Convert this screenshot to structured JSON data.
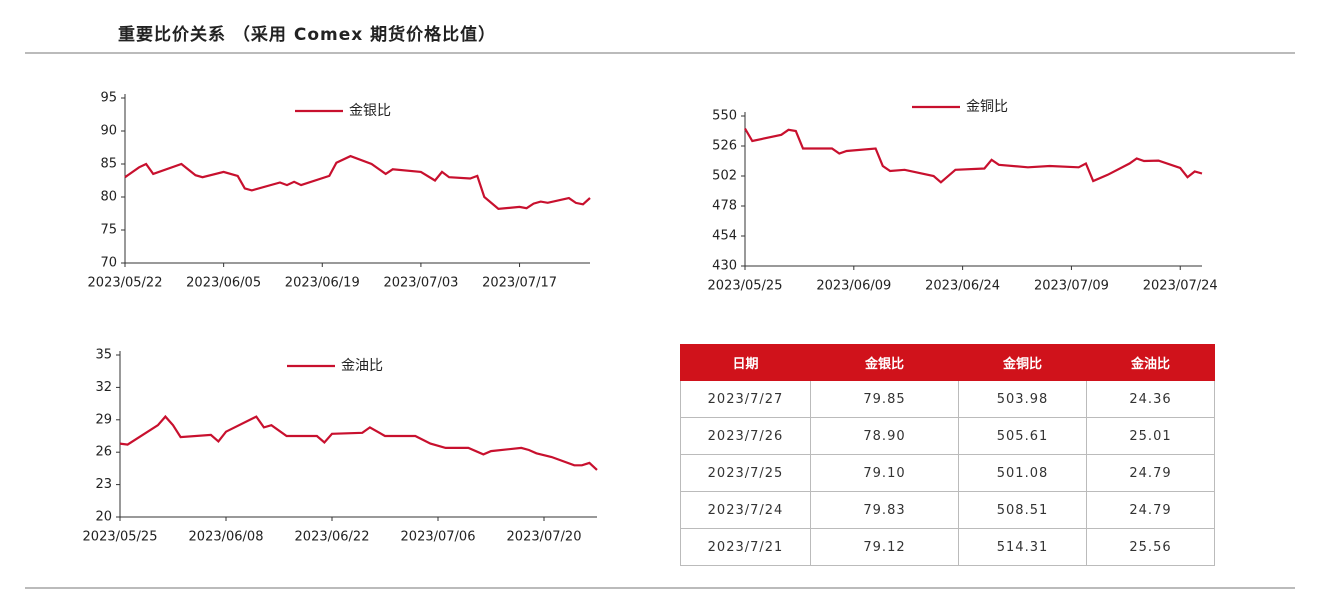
{
  "header": {
    "title": "重要比价关系 （采用 Comex 期货价格比值）"
  },
  "chart_data": [
    {
      "type": "line",
      "legend": "top",
      "xlim": [
        "2023/05/22",
        "2023/07/27"
      ],
      "xticks": [
        "2023/05/22",
        "2023/06/05",
        "2023/06/19",
        "2023/07/03",
        "2023/07/17"
      ],
      "ylim": [
        70,
        95
      ],
      "yticks": [
        70,
        75,
        80,
        85,
        90,
        95
      ],
      "x": [
        "2023/05/22",
        "2023/05/24",
        "2023/05/25",
        "2023/05/26",
        "2023/05/30",
        "2023/06/01",
        "2023/06/02",
        "2023/06/05",
        "2023/06/07",
        "2023/06/08",
        "2023/06/09",
        "2023/06/13",
        "2023/06/14",
        "2023/06/15",
        "2023/06/16",
        "2023/06/20",
        "2023/06/21",
        "2023/06/23",
        "2023/06/26",
        "2023/06/28",
        "2023/06/29",
        "2023/07/03",
        "2023/07/05",
        "2023/07/06",
        "2023/07/07",
        "2023/07/10",
        "2023/07/11",
        "2023/07/12",
        "2023/07/14",
        "2023/07/17",
        "2023/07/18",
        "2023/07/19",
        "2023/07/20",
        "2023/07/21",
        "2023/07/24",
        "2023/07/25",
        "2023/07/26",
        "2023/07/27"
      ],
      "series": [
        {
          "name": "金银比",
          "color": "#c8102e",
          "values": [
            83,
            84.5,
            85,
            83.5,
            85,
            83.3,
            83,
            83.8,
            83.2,
            81.3,
            81,
            82.2,
            81.8,
            82.3,
            81.8,
            83.2,
            85.2,
            86.2,
            85,
            83.5,
            84.2,
            83.8,
            82.5,
            83.8,
            83,
            82.8,
            83.2,
            80,
            78.2,
            78.5,
            78.3,
            79,
            79.3,
            79.12,
            79.83,
            79.1,
            78.9,
            79.85
          ]
        }
      ]
    },
    {
      "type": "line",
      "legend": "top",
      "xlim": [
        "2023/05/25",
        "2023/07/27"
      ],
      "xticks": [
        "2023/05/25",
        "2023/06/09",
        "2023/06/24",
        "2023/07/09",
        "2023/07/24"
      ],
      "ylim": [
        430,
        550
      ],
      "yticks": [
        430,
        454,
        478,
        502,
        526,
        550
      ],
      "x": [
        "2023/05/25",
        "2023/05/26",
        "2023/05/30",
        "2023/05/31",
        "2023/06/01",
        "2023/06/02",
        "2023/06/06",
        "2023/06/07",
        "2023/06/08",
        "2023/06/12",
        "2023/06/13",
        "2023/06/14",
        "2023/06/16",
        "2023/06/20",
        "2023/06/21",
        "2023/06/23",
        "2023/06/27",
        "2023/06/28",
        "2023/06/29",
        "2023/07/03",
        "2023/07/06",
        "2023/07/10",
        "2023/07/11",
        "2023/07/12",
        "2023/07/14",
        "2023/07/17",
        "2023/07/18",
        "2023/07/19",
        "2023/07/21",
        "2023/07/24",
        "2023/07/25",
        "2023/07/26",
        "2023/07/27"
      ],
      "series": [
        {
          "name": "金铜比",
          "color": "#c8102e",
          "values": [
            540,
            530,
            535,
            539,
            538,
            524,
            524,
            520,
            522,
            524,
            510,
            506,
            507,
            502,
            497,
            507,
            508,
            515,
            511,
            509,
            510,
            509,
            512,
            498,
            503,
            512,
            516,
            514,
            514.31,
            508.51,
            501.08,
            505.61,
            503.98
          ]
        }
      ]
    },
    {
      "type": "line",
      "legend": "top",
      "xlim": [
        "2023/05/25",
        "2023/07/27"
      ],
      "xticks": [
        "2023/05/25",
        "2023/06/08",
        "2023/06/22",
        "2023/07/06",
        "2023/07/20"
      ],
      "ylim": [
        20,
        35
      ],
      "yticks": [
        20,
        23,
        26,
        29,
        32,
        35
      ],
      "x": [
        "2023/05/25",
        "2023/05/26",
        "2023/05/30",
        "2023/05/31",
        "2023/06/01",
        "2023/06/02",
        "2023/06/06",
        "2023/06/07",
        "2023/06/08",
        "2023/06/12",
        "2023/06/13",
        "2023/06/14",
        "2023/06/16",
        "2023/06/20",
        "2023/06/21",
        "2023/06/22",
        "2023/06/26",
        "2023/06/27",
        "2023/06/29",
        "2023/07/03",
        "2023/07/05",
        "2023/07/07",
        "2023/07/10",
        "2023/07/12",
        "2023/07/13",
        "2023/07/17",
        "2023/07/18",
        "2023/07/19",
        "2023/07/21",
        "2023/07/24",
        "2023/07/25",
        "2023/07/26",
        "2023/07/27"
      ],
      "series": [
        {
          "name": "金油比",
          "color": "#c8102e",
          "values": [
            26.8,
            26.7,
            28.5,
            29.3,
            28.5,
            27.4,
            27.6,
            27,
            27.9,
            29.3,
            28.3,
            28.5,
            27.5,
            27.5,
            26.9,
            27.7,
            27.8,
            28.3,
            27.5,
            27.5,
            26.8,
            26.4,
            26.4,
            25.8,
            26.1,
            26.4,
            26.2,
            25.9,
            25.56,
            24.79,
            24.79,
            25.01,
            24.36
          ]
        }
      ]
    }
  ],
  "table": {
    "columns": [
      "日期",
      "金银比",
      "金铜比",
      "金油比"
    ],
    "rows": [
      [
        "2023/7/27",
        "79.85",
        "503.98",
        "24.36"
      ],
      [
        "2023/7/26",
        "78.90",
        "505.61",
        "25.01"
      ],
      [
        "2023/7/25",
        "79.10",
        "501.08",
        "24.79"
      ],
      [
        "2023/7/24",
        "79.83",
        "508.51",
        "24.79"
      ],
      [
        "2023/7/21",
        "79.12",
        "514.31",
        "25.56"
      ]
    ]
  }
}
